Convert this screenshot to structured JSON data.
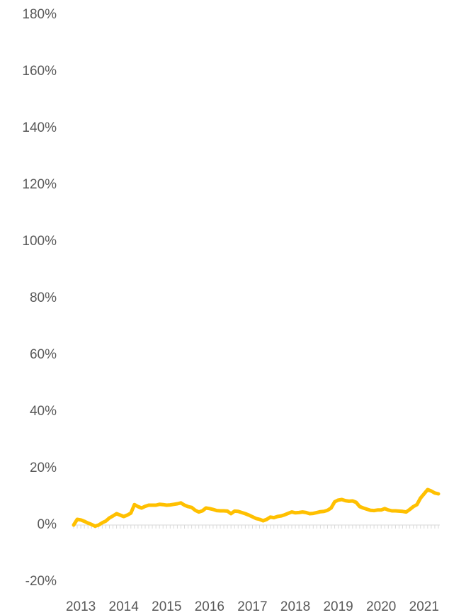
{
  "chart_data": {
    "type": "line",
    "categories": [
      null,
      null,
      "2013",
      null,
      null,
      null,
      null,
      null,
      null,
      null,
      null,
      null,
      null,
      null,
      "2014",
      null,
      null,
      null,
      null,
      null,
      null,
      null,
      null,
      null,
      null,
      null,
      "2015",
      null,
      null,
      null,
      null,
      null,
      null,
      null,
      null,
      null,
      null,
      null,
      "2016",
      null,
      null,
      null,
      null,
      null,
      null,
      null,
      null,
      null,
      null,
      null,
      "2017",
      null,
      null,
      null,
      null,
      null,
      null,
      null,
      null,
      null,
      null,
      null,
      "2018",
      null,
      null,
      null,
      null,
      null,
      null,
      null,
      null,
      null,
      null,
      null,
      "2019",
      null,
      null,
      null,
      null,
      null,
      null,
      null,
      null,
      null,
      null,
      null,
      "2020",
      null,
      null,
      null,
      null,
      null,
      null,
      null,
      null,
      null,
      null,
      null,
      "2021",
      null,
      null,
      null,
      null
    ],
    "series": [
      {
        "color": "#FFC000",
        "values": [
          0,
          2,
          1.8,
          1.3,
          0.7,
          0.2,
          -0.4,
          0,
          0.8,
          1.4,
          2.5,
          3.2,
          4,
          3.5,
          3,
          3.5,
          4.2,
          7.2,
          6.5,
          6,
          6.6,
          7,
          7,
          7,
          7.3,
          7.2,
          7,
          7.1,
          7.3,
          7.5,
          7.8,
          7,
          6.5,
          6.2,
          5.2,
          4.6,
          5,
          6,
          5.8,
          5.5,
          5.1,
          5,
          5,
          4.9,
          4,
          4.9,
          4.8,
          4.4,
          4,
          3.5,
          2.9,
          2.3,
          2,
          1.5,
          2,
          2.8,
          2.6,
          3,
          3.2,
          3.6,
          4.1,
          4.6,
          4.3,
          4.4,
          4.6,
          4.4,
          4,
          4.1,
          4.4,
          4.7,
          4.8,
          5.2,
          6,
          8.2,
          8.8,
          9,
          8.6,
          8.4,
          8.5,
          8,
          6.5,
          6,
          5.6,
          5.2,
          5.1,
          5.3,
          5.3,
          5.8,
          5.3,
          5,
          5,
          4.9,
          4.8,
          4.6,
          5.5,
          6.5,
          7.2,
          9.5,
          11,
          12.5,
          12,
          11.3,
          11
        ]
      }
    ],
    "ylim": [
      -20,
      180
    ],
    "yticks": [
      {
        "value": -20,
        "label": "-20%"
      },
      {
        "value": 0,
        "label": "0%"
      },
      {
        "value": 20,
        "label": "20%"
      },
      {
        "value": 40,
        "label": "40%"
      },
      {
        "value": 60,
        "label": "60%"
      },
      {
        "value": 80,
        "label": "80%"
      },
      {
        "value": 100,
        "label": "100%"
      },
      {
        "value": 120,
        "label": "120%"
      },
      {
        "value": 140,
        "label": "140%"
      },
      {
        "value": 160,
        "label": "160%"
      },
      {
        "value": 180,
        "label": "180%"
      }
    ],
    "grid": false
  }
}
